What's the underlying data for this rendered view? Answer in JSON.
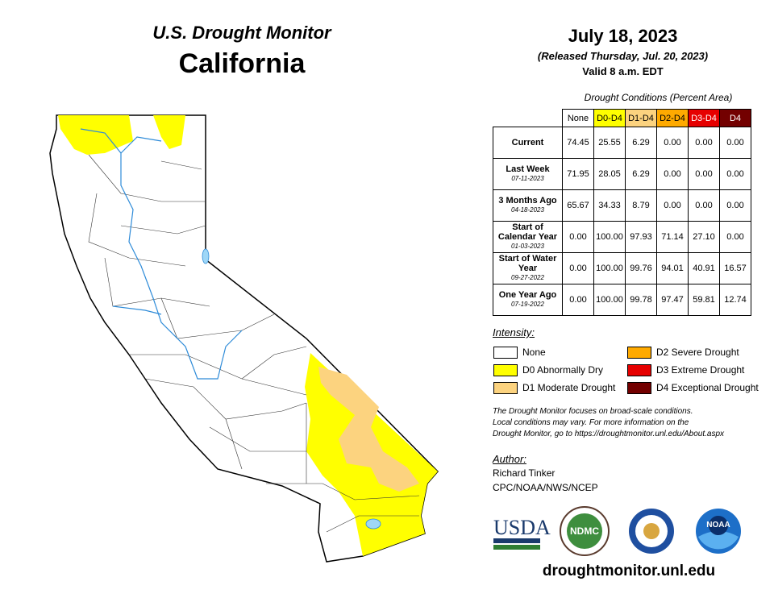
{
  "header": {
    "title": "U.S. Drought Monitor",
    "state": "California",
    "date": "July 18, 2023",
    "released": "(Released Thursday, Jul. 20, 2023)",
    "valid": "Valid 8 a.m. EDT"
  },
  "table": {
    "caption": "Drought Conditions (Percent Area)",
    "columns": [
      "None",
      "D0-D4",
      "D1-D4",
      "D2-D4",
      "D3-D4",
      "D4"
    ],
    "column_colors": [
      "#ffffff",
      "#ffff00",
      "#fcd37f",
      "#ffaa00",
      "#e60000",
      "#730000"
    ],
    "rows": [
      {
        "label": "Current",
        "values": [
          "74.45",
          "25.55",
          "6.29",
          "0.00",
          "0.00",
          "0.00"
        ]
      },
      {
        "label": "Last Week",
        "date": "07-11-2023",
        "values": [
          "71.95",
          "28.05",
          "6.29",
          "0.00",
          "0.00",
          "0.00"
        ]
      },
      {
        "label": "3 Months Ago",
        "date": "04-18-2023",
        "values": [
          "65.67",
          "34.33",
          "8.79",
          "0.00",
          "0.00",
          "0.00"
        ]
      },
      {
        "label": "Start of Calendar Year",
        "date": "01-03-2023",
        "values": [
          "0.00",
          "100.00",
          "97.93",
          "71.14",
          "27.10",
          "0.00"
        ]
      },
      {
        "label": "Start of Water Year",
        "date": "09-27-2022",
        "values": [
          "0.00",
          "100.00",
          "99.76",
          "94.01",
          "40.91",
          "16.57"
        ]
      },
      {
        "label": "One Year Ago",
        "date": "07-19-2022",
        "values": [
          "0.00",
          "100.00",
          "99.78",
          "97.47",
          "59.81",
          "12.74"
        ]
      }
    ]
  },
  "legend": {
    "title": "Intensity:",
    "items": [
      {
        "label": "None",
        "color": "#ffffff"
      },
      {
        "label": "D0 Abnormally Dry",
        "color": "#ffff00"
      },
      {
        "label": "D1 Moderate Drought",
        "color": "#fcd37f"
      },
      {
        "label": "D2 Severe Drought",
        "color": "#ffaa00"
      },
      {
        "label": "D3 Extreme Drought",
        "color": "#e60000"
      },
      {
        "label": "D4 Exceptional Drought",
        "color": "#730000"
      }
    ]
  },
  "note": [
    "The Drought Monitor focuses on broad-scale conditions.",
    "Local conditions may vary. For more information on the",
    "Drought Monitor, go to https://droughtmonitor.unl.edu/About.aspx"
  ],
  "author": {
    "label": "Author:",
    "name": "Richard Tinker",
    "org": "CPC/NOAA/NWS/NCEP"
  },
  "logos": [
    "USDA",
    "NDMC",
    "NOAA"
  ],
  "url": "droughtmonitor.unl.edu"
}
